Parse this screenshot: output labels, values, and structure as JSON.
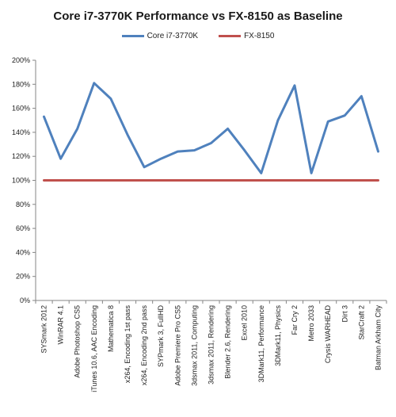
{
  "chart_data": {
    "type": "line",
    "title": "Core i7-3770K Performance vs FX-8150 as Baseline",
    "xlabel": "",
    "ylabel": "",
    "ylim": [
      0,
      200
    ],
    "y_tick_step": 20,
    "y_tick_suffix": "%",
    "grid": false,
    "legend_position": "top",
    "categories": [
      "SYSmark 2012",
      "WinRAR 4.1",
      "Adobe Photoshop CS5",
      "iTunes 10.6, AAC Encoding",
      "Mathematica 8",
      "x264, Encoding 1st pass",
      "x264, Encoding 2nd pass",
      "SYPmark 3, FullHD",
      "Adobe Premiere Pro CS5",
      "3dsmax 2011, Computing",
      "3dsmax 2011, Rendering",
      "Blender 2.6, Rendering",
      "Excel 2010",
      "3DMark11, Performance",
      "3DMark11, Physics",
      "Far Cry 2",
      "Metro 2033",
      "Crysis WARHEAD",
      "Dirt 3",
      "StarCraft 2",
      "Batman Arkham City"
    ],
    "series": [
      {
        "name": "Core i7-3770K",
        "color": "#4f81bd",
        "values": [
          153,
          118,
          143,
          181,
          168,
          138,
          111,
          118,
          124,
          125,
          131,
          143,
          125,
          106,
          150,
          179,
          106,
          149,
          154,
          170,
          124
        ]
      },
      {
        "name": "FX-8150",
        "color": "#c0504d",
        "values": [
          100,
          100,
          100,
          100,
          100,
          100,
          100,
          100,
          100,
          100,
          100,
          100,
          100,
          100,
          100,
          100,
          100,
          100,
          100,
          100,
          100
        ]
      }
    ]
  }
}
